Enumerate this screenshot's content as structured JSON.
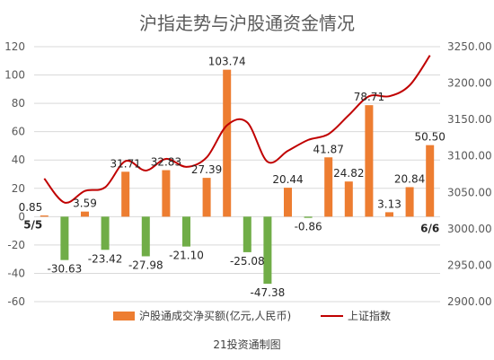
{
  "chart_data": {
    "type": "bar",
    "title": "沪指走势与沪股通资金情况",
    "footer": "21投资通制图",
    "colors": {
      "bar_positive": "#ED7D31",
      "bar_negative": "#70AD47",
      "line": "#C00000",
      "grid": "#D9D9D9",
      "text": "#595959"
    },
    "y_left": {
      "ylim": [
        -60,
        120
      ],
      "ticks": [
        -60,
        -40,
        -20,
        0,
        20,
        40,
        60,
        80,
        100,
        120
      ]
    },
    "y_right": {
      "ylim": [
        2900,
        3250
      ],
      "ticks": [
        2900,
        2950,
        3000,
        3050,
        3100,
        3150,
        3200,
        3250
      ]
    },
    "grid": true,
    "legend": {
      "placement": "bottom",
      "items": [
        "沪股通成交净买额(亿元,人民币)",
        "上证指数"
      ]
    },
    "first_date_label": "5/5",
    "last_date_label": "6/6",
    "series": [
      {
        "name": "沪股通成交净买额(亿元,人民币)",
        "type": "bar",
        "values": [
          0.85,
          -30.63,
          3.59,
          -23.42,
          31.71,
          -27.98,
          32.83,
          -21.1,
          27.39,
          103.74,
          -25.08,
          -47.38,
          20.44,
          -0.86,
          41.87,
          24.82,
          78.71,
          3.13,
          20.84,
          50.5
        ]
      },
      {
        "name": "上证指数",
        "type": "line",
        "values": [
          3069,
          3036,
          3052,
          3057,
          3093,
          3080,
          3096,
          3085,
          3098,
          3142,
          3146,
          3092,
          3107,
          3122,
          3130,
          3156,
          3182,
          3182,
          3197,
          3238
        ]
      }
    ]
  }
}
